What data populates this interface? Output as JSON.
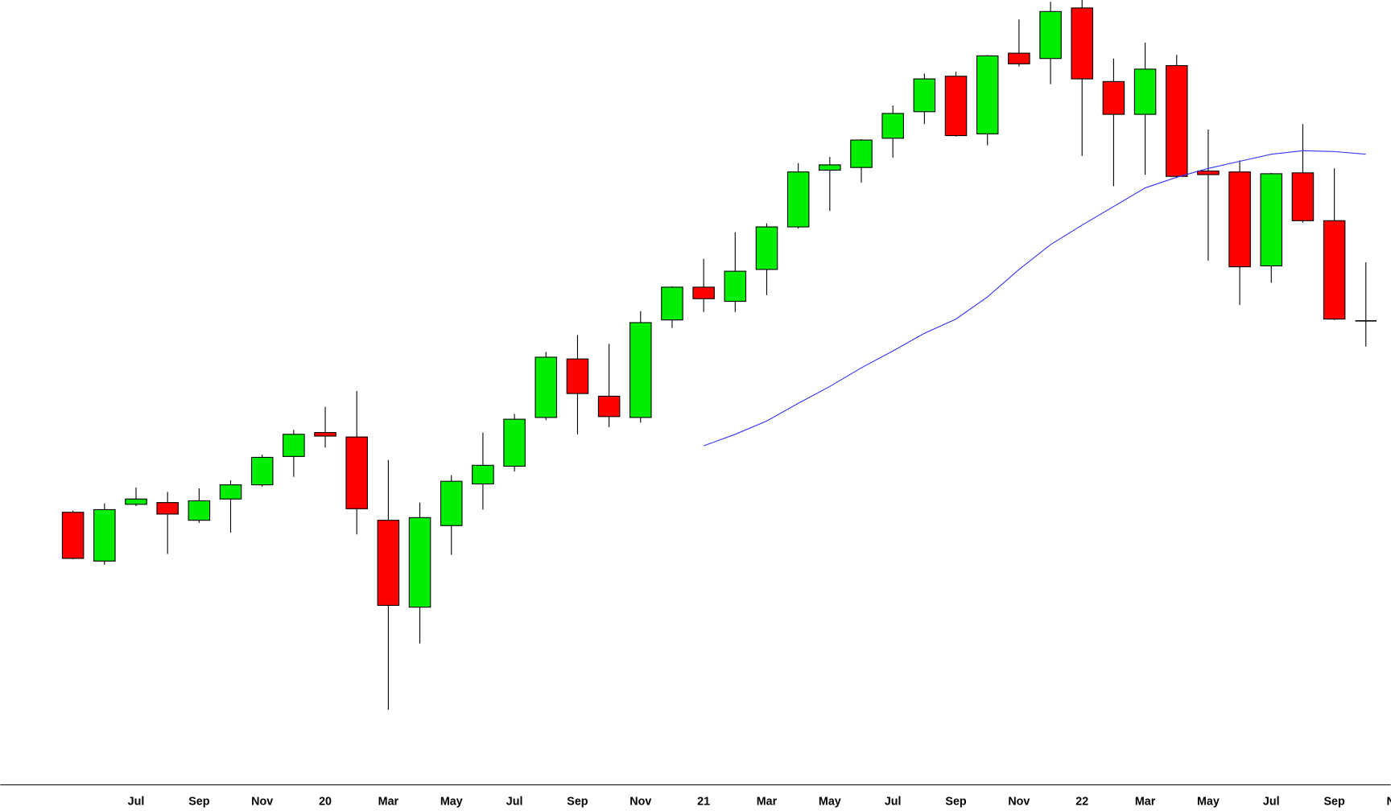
{
  "chart_data": {
    "type": "candlestick",
    "categories": [
      null,
      null,
      "Jul",
      null,
      "Sep",
      null,
      "Nov",
      null,
      "20",
      null,
      "Mar",
      null,
      "May",
      null,
      "Jul",
      null,
      "Sep",
      null,
      "Nov",
      null,
      "21",
      null,
      "Mar",
      null,
      "May",
      null,
      "Jul",
      null,
      "Sep",
      null,
      "Nov",
      null,
      "22",
      null,
      "Mar",
      null,
      "May",
      null,
      "Jul",
      null,
      "Sep",
      null,
      "Nov"
    ],
    "open": [
      322,
      267,
      331,
      333,
      313,
      337,
      353,
      385,
      412,
      407,
      313,
      215,
      307,
      354,
      374,
      429,
      495,
      453,
      429,
      539,
      576,
      560,
      596,
      644,
      708,
      711,
      744,
      774,
      814,
      749,
      840,
      834,
      891,
      808,
      771,
      826,
      707,
      706,
      600,
      705,
      651,
      538,
      null
    ],
    "high": [
      324,
      332,
      350,
      345,
      349,
      358,
      387,
      415,
      441,
      459,
      381,
      333,
      364,
      412,
      433,
      503,
      522,
      512,
      549,
      577,
      608,
      638,
      648,
      716,
      723,
      743,
      781,
      817,
      819,
      838,
      878,
      898,
      900,
      834,
      852,
      838,
      754,
      719,
      705,
      760,
      710,
      604,
      null
    ],
    "low": [
      269,
      263,
      329,
      275,
      310,
      299,
      351,
      362,
      395,
      297,
      99,
      174,
      274,
      325,
      368,
      426,
      410,
      418,
      423,
      530,
      548,
      548,
      567,
      642,
      662,
      694,
      722,
      760,
      746,
      736,
      825,
      805,
      724,
      690,
      703,
      699,
      606,
      556,
      581,
      649,
      539,
      509,
      null
    ],
    "close": [
      270,
      325,
      337,
      320,
      335,
      353,
      384,
      410,
      408,
      326,
      217,
      316,
      357,
      375,
      427,
      497,
      456,
      430,
      536,
      576,
      563,
      594,
      644,
      706,
      714,
      742,
      772,
      811,
      747,
      837,
      828,
      887,
      811,
      771,
      822,
      701,
      703,
      599,
      704,
      651,
      540,
      538,
      null
    ],
    "moving_average": {
      "color": "#3333ff",
      "values": [
        null,
        null,
        null,
        null,
        null,
        null,
        null,
        null,
        null,
        null,
        null,
        null,
        null,
        null,
        null,
        null,
        null,
        null,
        null,
        null,
        397,
        410,
        425,
        445,
        464,
        485,
        504,
        524,
        540,
        565,
        596,
        624,
        646,
        667,
        688,
        700,
        710,
        718,
        726,
        730,
        729,
        726,
        null
      ]
    },
    "up_color": "#00ee00",
    "down_color": "#ff0000",
    "doji_color": "#000000",
    "ylim": [
      0,
      900
    ]
  }
}
